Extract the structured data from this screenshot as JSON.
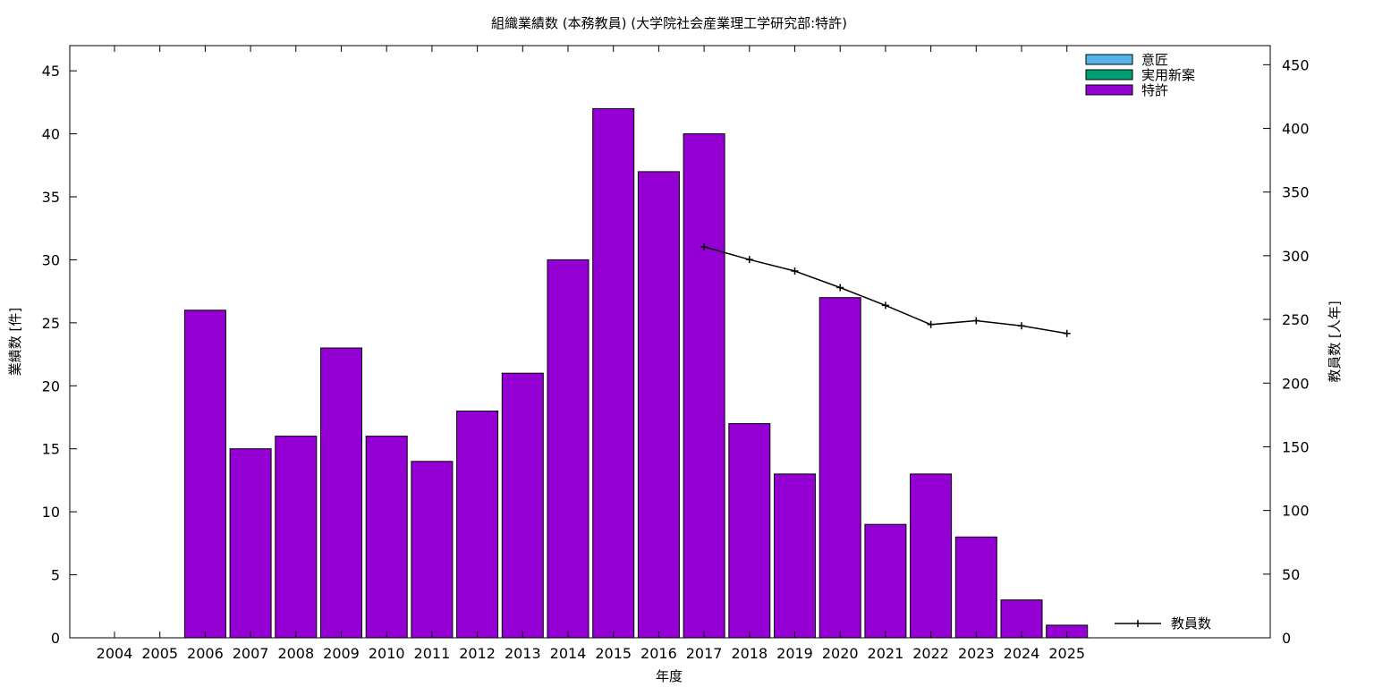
{
  "chart_data": {
    "type": "bar",
    "title": "組織業績数 (本務教員) (大学院社会産業理工学研究部:特許)",
    "xlabel": "年度",
    "ylabel": "業績数 [件]",
    "y2label": "教員数 [人年]",
    "categories": [
      "2004",
      "2005",
      "2006",
      "2007",
      "2008",
      "2009",
      "2010",
      "2011",
      "2012",
      "2013",
      "2014",
      "2015",
      "2016",
      "2017",
      "2018",
      "2019",
      "2020",
      "2021",
      "2022",
      "2023",
      "2024",
      "2025"
    ],
    "ylim": [
      0,
      47
    ],
    "y2lim": [
      0,
      465
    ],
    "yticks": [
      0,
      5,
      10,
      15,
      20,
      25,
      30,
      35,
      40,
      45
    ],
    "y2ticks": [
      0,
      50,
      100,
      150,
      200,
      250,
      300,
      350,
      400,
      450
    ],
    "grid": false,
    "legend_position": "top-right",
    "series": [
      {
        "name": "意匠",
        "type": "bar",
        "color": "#56b4e9",
        "values": [
          0,
          0,
          0,
          0,
          0,
          0,
          0,
          0,
          0,
          0,
          0,
          0,
          0,
          0,
          0,
          0,
          0,
          0,
          0,
          0,
          0,
          0
        ]
      },
      {
        "name": "実用新案",
        "type": "bar",
        "color": "#009e73",
        "values": [
          0,
          0,
          0,
          0,
          0,
          0,
          0,
          0,
          0,
          0,
          0,
          0,
          0,
          0,
          0,
          0,
          0,
          0,
          0,
          0,
          0,
          0
        ]
      },
      {
        "name": "特許",
        "type": "bar",
        "color": "#9400d3",
        "values": [
          0,
          0,
          26,
          15,
          16,
          23,
          16,
          14,
          18,
          21,
          30,
          42,
          37,
          40,
          17,
          13,
          27,
          9,
          13,
          8,
          3,
          1
        ]
      }
    ],
    "line_series": {
      "name": "教員数",
      "axis": "y2",
      "color": "#000000",
      "x": [
        "2017",
        "2018",
        "2019",
        "2020",
        "2021",
        "2022",
        "2023",
        "2024",
        "2025"
      ],
      "values": [
        307,
        297,
        288,
        275,
        261,
        246,
        249,
        245,
        239
      ]
    }
  }
}
